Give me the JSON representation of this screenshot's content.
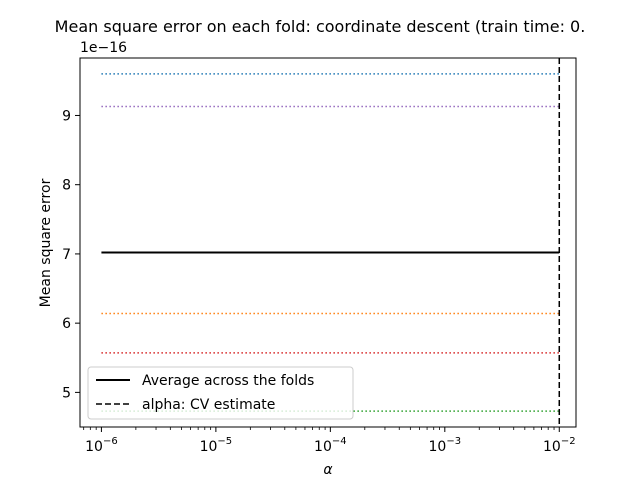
{
  "chart_data": {
    "type": "line",
    "title": "Mean square error on each fold: coordinate descent (train time: 0.",
    "xlabel": "α",
    "ylabel": "Mean square error",
    "y_offset_label": "1e−16",
    "x_scale": "log",
    "xlim": [
      6.5e-07,
      0.014
    ],
    "ylim": [
      4.5,
      9.83
    ],
    "x_ticks": [
      {
        "value": 1e-06,
        "base": "10",
        "exp": "−6"
      },
      {
        "value": 1e-05,
        "base": "10",
        "exp": "−5"
      },
      {
        "value": 0.0001,
        "base": "10",
        "exp": "−4"
      },
      {
        "value": 0.001,
        "base": "10",
        "exp": "−3"
      },
      {
        "value": 0.01,
        "base": "10",
        "exp": "−2"
      }
    ],
    "y_ticks": [
      {
        "value": 5,
        "label": "5"
      },
      {
        "value": 6,
        "label": "6"
      },
      {
        "value": 7,
        "label": "7"
      },
      {
        "value": 8,
        "label": "8"
      },
      {
        "value": 9,
        "label": "9"
      }
    ],
    "x_range": [
      1e-06,
      0.01
    ],
    "series": [
      {
        "values": [
          9.6,
          9.6
        ],
        "color": "#1f77b4",
        "style": "dotted"
      },
      {
        "values": [
          9.13,
          9.13
        ],
        "color": "#9467bd",
        "style": "dotted"
      },
      {
        "values": [
          6.14,
          6.14
        ],
        "color": "#ff7f0e",
        "style": "dotted"
      },
      {
        "values": [
          5.57,
          5.57
        ],
        "color": "#d62728",
        "style": "dotted"
      },
      {
        "values": [
          4.73,
          4.73
        ],
        "color": "#2ca02c",
        "style": "dotted"
      },
      {
        "name": "Average across the folds",
        "values": [
          7.02,
          7.02
        ],
        "color": "#000000",
        "style": "solid"
      }
    ],
    "vline": {
      "name": "alpha: CV estimate",
      "x": 0.01,
      "color": "#000000",
      "style": "dashed"
    },
    "legend": {
      "placement": "lower-left",
      "entries": [
        {
          "label": "Average across the folds",
          "style": "solid"
        },
        {
          "label": "alpha: CV estimate",
          "style": "dashed"
        }
      ]
    },
    "grid": false
  }
}
